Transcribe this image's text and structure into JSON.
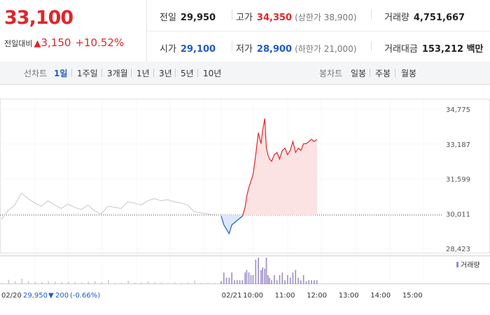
{
  "quote": {
    "price": "33,100",
    "change_label": "전일대비",
    "change_arrow": "▲",
    "change_amount": "3,150",
    "change_pct": "+10.52%",
    "prev_close_label": "전일",
    "prev_close": "29,950",
    "high_label": "고가",
    "high": "34,350",
    "upper_limit": "(상한가 38,900)",
    "volume_label": "거래량",
    "volume": "4,751,667",
    "open_label": "시가",
    "open": "29,100",
    "low_label": "저가",
    "low": "28,900",
    "lower_limit": "(하한가 21,000)",
    "amount_label": "거래대금",
    "amount": "153,212 백만"
  },
  "tabs": {
    "line_label": "선차트",
    "line": [
      "1일",
      "1주일",
      "3개월",
      "1년",
      "3년",
      "5년",
      "10년"
    ],
    "active": "1일",
    "candle_label": "봉차트",
    "candle": [
      "일봉",
      "주봉",
      "월봉"
    ]
  },
  "colors": {
    "up": "#e0262b",
    "down": "#1f5bc6",
    "fill_up": "#fbe3e3",
    "fill_down": "#dde8f8",
    "prev_line": "#c8c8c8",
    "volume": "#9b8dc6"
  },
  "chart_data": {
    "type": "line",
    "x_unit": "time",
    "y_ticks": [
      "34,775",
      "33,187",
      "31,599",
      "30,011",
      "28,423"
    ],
    "ylim": [
      28423,
      34775
    ],
    "x_ticks": [
      "02/21",
      "10:00",
      "11:00",
      "12:00",
      "13:00",
      "14:00",
      "15:00"
    ],
    "baseline": 29950,
    "previous_day": {
      "date": "02/20",
      "close": "29,950",
      "change_arrow": "▼",
      "change": "200",
      "change_pct": "(-0.66%)",
      "points": [
        29750,
        30150,
        30400,
        30950,
        30700,
        30500,
        30350,
        30600,
        30400,
        30250,
        30450,
        30300,
        30200,
        30400,
        30150,
        30000,
        30350,
        30300,
        30250,
        30550,
        30500,
        30400,
        30600,
        30700,
        30600,
        30650,
        30550,
        30500,
        30400,
        30100,
        30050,
        30000,
        29950
      ]
    },
    "today": {
      "times": [
        "09:00",
        "09:05",
        "09:10",
        "09:15",
        "09:20",
        "09:25",
        "09:30",
        "09:35",
        "09:40",
        "09:45",
        "09:48",
        "09:52",
        "09:56",
        "10:00",
        "10:05",
        "10:10",
        "10:15",
        "10:18",
        "10:22",
        "10:25",
        "10:28",
        "10:31",
        "10:35",
        "10:40",
        "10:45",
        "10:50",
        "10:55",
        "11:00",
        "11:05",
        "11:10",
        "11:15",
        "11:20",
        "11:25",
        "11:30",
        "11:35",
        "11:40",
        "11:45",
        "11:50",
        "11:55",
        "12:00"
      ],
      "prices": [
        29900,
        29500,
        29300,
        29100,
        29500,
        29600,
        29700,
        29800,
        29900,
        30300,
        30800,
        31200,
        31500,
        31800,
        32700,
        33700,
        33200,
        33800,
        34350,
        33000,
        32700,
        32500,
        32400,
        32700,
        32800,
        32500,
        32900,
        33000,
        32700,
        32900,
        33300,
        32800,
        33000,
        32900,
        33200,
        33200,
        33300,
        33400,
        33300,
        33400
      ]
    },
    "volume_label": "거래량"
  }
}
